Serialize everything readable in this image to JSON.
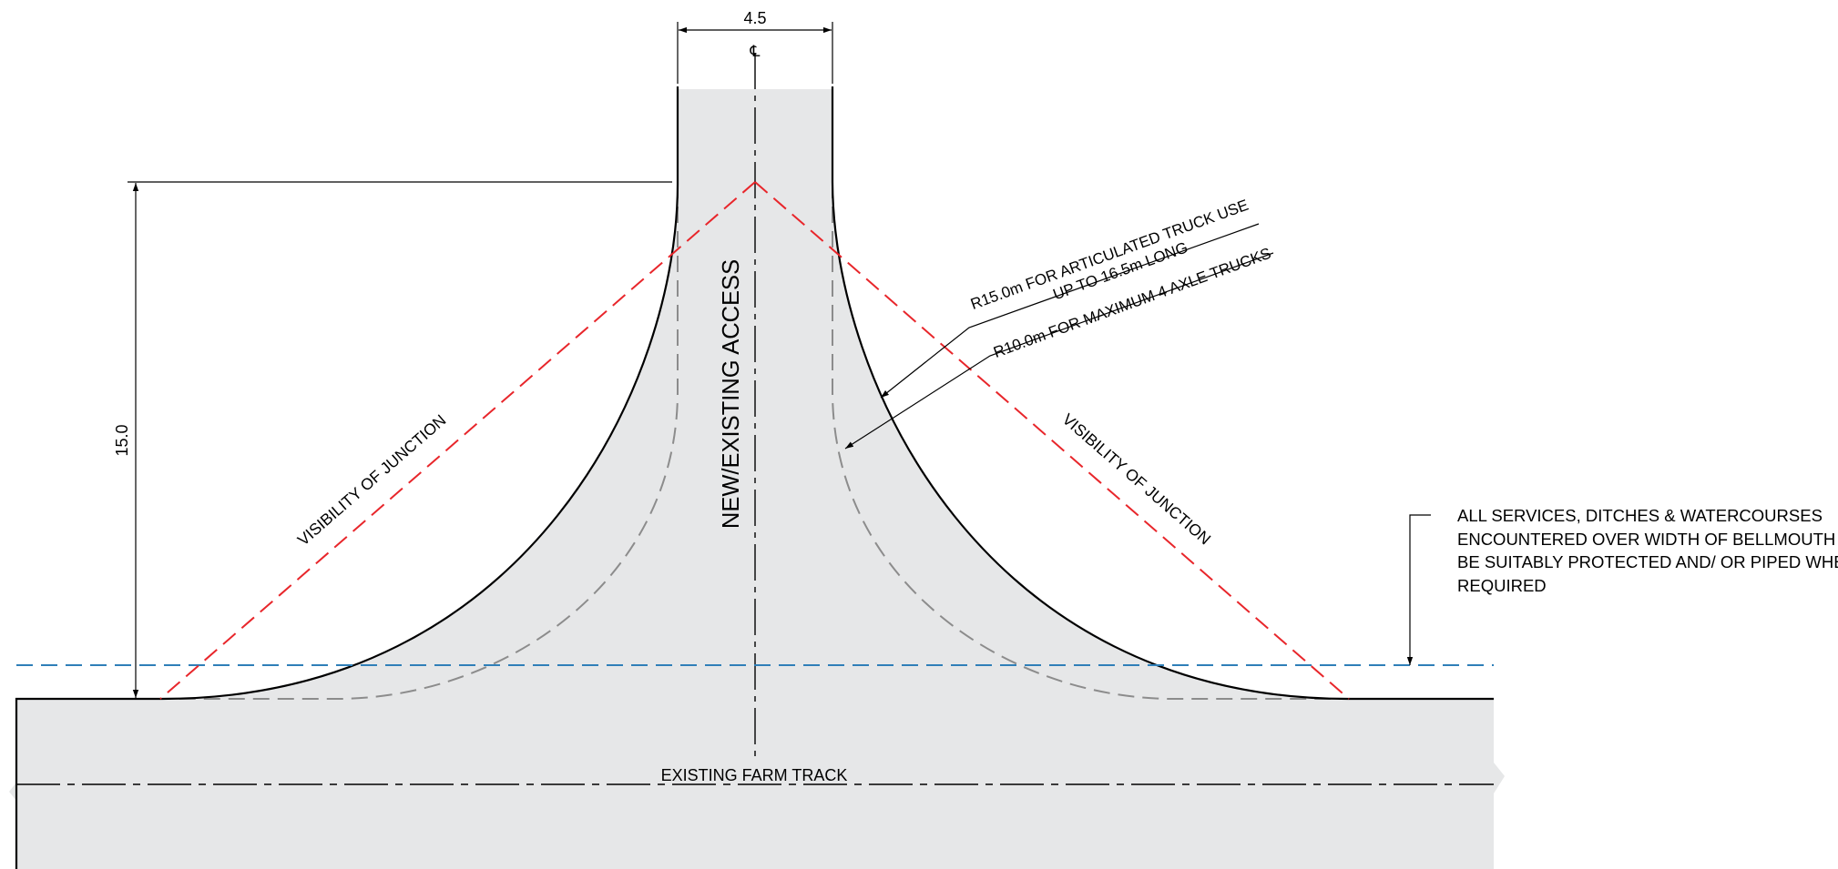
{
  "labels": {
    "width_dimension": "4.5",
    "centerline_symbol": "℄",
    "depth_dimension": "15.0",
    "access_road": "NEW/EXISTING ACCESS",
    "farm_track": "EXISTING FARM TRACK",
    "visibility_left": "VISIBILITY OF JUNCTION",
    "visibility_right": "VISIBILITY OF JUNCTION",
    "radius_15_line1": "R15.0m FOR ARTICULATED TRUCK USE",
    "radius_15_line2": "UP TO 16.5m LONG",
    "radius_10": "R10.0m FOR MAXIMUM 4 AXLE TRUCKS"
  },
  "services_note": {
    "lines": [
      "ALL SERVICES, DITCHES & WATERCOURSES",
      "ENCOUNTERED OVER WIDTH OF BELLMOUTH TO",
      "BE SUITABLY PROTECTED AND/ OR PIPED WHERE",
      "REQUIRED"
    ]
  },
  "colors": {
    "road_fill": "#e6e7e8",
    "outline": "#000000",
    "visibility_splay": "#e8262b",
    "services_line": "#2f7fb8",
    "r10_kerb": "#8c8c8c"
  }
}
